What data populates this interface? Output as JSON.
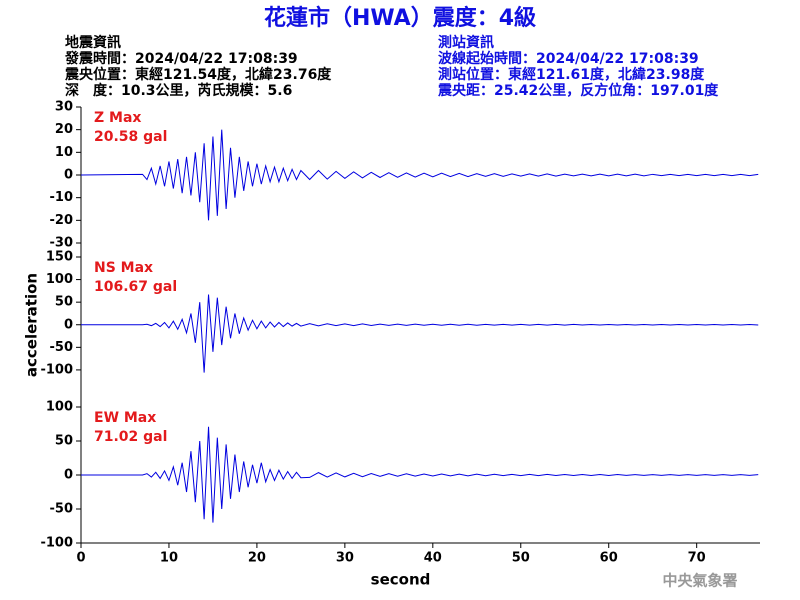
{
  "header": {
    "title": "花蓮市（HWA）震度：4級",
    "left_lines": [
      "地震資訊",
      "發震時間：2024/04/22 17:08:39",
      "震央位置：東經121.54度，北緯23.76度",
      "深　度：10.3公里，芮氏規模：5.6"
    ],
    "right_lines": [
      "測站資訊",
      "波線起始時間：2024/04/22 17:08:39",
      "測站位置：東經121.61度，北緯23.98度",
      "震央距：25.42公里，反方位角：197.01度"
    ],
    "footer": "中央氣象署"
  },
  "chart_data": [
    {
      "type": "line",
      "annotation": [
        "Z Max",
        "20.58 gal"
      ],
      "color": "#0000e0",
      "ylim": [
        -30,
        30
      ],
      "yticks": [
        -30,
        -20,
        -10,
        0,
        10,
        20,
        30
      ],
      "xlim": [
        0,
        77.2
      ],
      "x": [
        0,
        7,
        7.5,
        8,
        8.5,
        9,
        9.5,
        10,
        10.5,
        11,
        11.5,
        12,
        12.5,
        13,
        13.5,
        14,
        14.5,
        15,
        15.5,
        16,
        16.5,
        17,
        17.5,
        18,
        18.5,
        19,
        19.5,
        20,
        20.5,
        21,
        21.5,
        22,
        22.5,
        23,
        23.5,
        24,
        24.5,
        25,
        26,
        27,
        28,
        29,
        30,
        31,
        32,
        33,
        34,
        35,
        36,
        37,
        38,
        39,
        40,
        41,
        42,
        43,
        44,
        45,
        46,
        47,
        48,
        49,
        50,
        51,
        52,
        53,
        54,
        55,
        56,
        57,
        58,
        59,
        60,
        61,
        62,
        63,
        64,
        65,
        66,
        67,
        68,
        69,
        70,
        71,
        72,
        73,
        74,
        75,
        76,
        77
      ],
      "values": [
        0,
        0.3,
        -2,
        3,
        -4,
        4,
        -5,
        6,
        -6,
        7,
        -8,
        8,
        -9,
        10,
        -12,
        14,
        -20,
        17,
        -18,
        20,
        -15,
        12,
        -10,
        8,
        -7,
        6,
        -5,
        5,
        -4,
        4,
        -3,
        3.5,
        -3,
        3,
        -2.5,
        2.5,
        -2,
        2,
        -2,
        2,
        -1.8,
        1.6,
        -1.5,
        1.4,
        -1.3,
        1.2,
        -1.1,
        1,
        -1,
        0.9,
        -0.9,
        0.8,
        -0.8,
        0.8,
        -0.7,
        0.7,
        -0.7,
        0.6,
        -0.6,
        0.6,
        -0.6,
        0.5,
        -0.5,
        0.5,
        -0.5,
        0.5,
        -0.5,
        0.4,
        -0.4,
        0.4,
        -0.4,
        0.4,
        -0.4,
        0.4,
        -0.4,
        0.4,
        -0.4,
        0.3,
        -0.3,
        0.3,
        -0.3,
        0.3,
        -0.3,
        0.3,
        -0.3,
        0.3,
        -0.3,
        0.3,
        -0.3,
        0.3
      ]
    },
    {
      "type": "line",
      "annotation": [
        "NS Max",
        "106.67 gal"
      ],
      "ylabel": "acceleration",
      "color": "#0000e0",
      "ylim": [
        -150,
        150
      ],
      "yticks": [
        -100,
        -50,
        0,
        50,
        100,
        150
      ],
      "xlim": [
        0,
        77.2
      ],
      "x": [
        0,
        7,
        7.5,
        8,
        8.5,
        9,
        9.5,
        10,
        10.5,
        11,
        11.5,
        12,
        12.5,
        13,
        13.5,
        14,
        14.5,
        15,
        15.5,
        16,
        16.5,
        17,
        17.5,
        18,
        18.5,
        19,
        19.5,
        20,
        20.5,
        21,
        21.5,
        22,
        22.5,
        23,
        23.5,
        24,
        24.5,
        25,
        26,
        27,
        28,
        29,
        30,
        31,
        32,
        33,
        34,
        35,
        36,
        37,
        38,
        39,
        40,
        41,
        42,
        43,
        44,
        45,
        46,
        47,
        48,
        49,
        50,
        51,
        52,
        53,
        54,
        55,
        56,
        57,
        58,
        59,
        60,
        61,
        62,
        63,
        64,
        65,
        66,
        67,
        68,
        69,
        70,
        71,
        72,
        73,
        74,
        75,
        76,
        77
      ],
      "values": [
        0,
        0,
        1,
        -2,
        3,
        -4,
        5,
        -7,
        8,
        -10,
        12,
        -18,
        25,
        -40,
        50,
        -106,
        67,
        -60,
        60,
        -45,
        40,
        -30,
        25,
        -20,
        15,
        -12,
        10,
        -9,
        8,
        -7,
        6,
        -5,
        5,
        -4,
        4,
        -3,
        3,
        -3,
        2.5,
        -2.5,
        2.2,
        -2,
        2,
        -1.8,
        1.8,
        -1.6,
        1.5,
        -1.5,
        1.4,
        -1.3,
        1.3,
        -1.2,
        1.2,
        -1.1,
        1.1,
        -1,
        1,
        -1,
        0.9,
        -0.9,
        0.9,
        -0.8,
        0.8,
        -0.8,
        0.8,
        -0.7,
        0.7,
        -0.7,
        0.7,
        -0.6,
        0.6,
        -0.6,
        0.6,
        -0.6,
        0.5,
        -0.5,
        0.5,
        -0.5,
        0.5,
        -0.5,
        0.5,
        -0.5,
        0.5,
        -0.5,
        0.5,
        -0.5,
        0.5,
        -0.5,
        0.5,
        -0.5
      ]
    },
    {
      "type": "line",
      "annotation": [
        "EW Max",
        "71.02 gal"
      ],
      "xlabel": "second",
      "color": "#0000e0",
      "ylim": [
        -100,
        100
      ],
      "yticks": [
        -100,
        -50,
        0,
        50,
        100
      ],
      "xlim": [
        0,
        77.2
      ],
      "xticks": [
        0,
        10,
        20,
        30,
        40,
        50,
        60,
        70
      ],
      "x": [
        0,
        7,
        7.5,
        8,
        8.5,
        9,
        9.5,
        10,
        10.5,
        11,
        11.5,
        12,
        12.5,
        13,
        13.5,
        14,
        14.5,
        15,
        15.5,
        16,
        16.5,
        17,
        17.5,
        18,
        18.5,
        19,
        19.5,
        20,
        20.5,
        21,
        21.5,
        22,
        22.5,
        23,
        23.5,
        24,
        24.5,
        25,
        26,
        27,
        28,
        29,
        30,
        31,
        32,
        33,
        34,
        35,
        36,
        37,
        38,
        39,
        40,
        41,
        42,
        43,
        44,
        45,
        46,
        47,
        48,
        49,
        50,
        51,
        52,
        53,
        54,
        55,
        56,
        57,
        58,
        59,
        60,
        61,
        62,
        63,
        64,
        65,
        66,
        67,
        68,
        69,
        70,
        71,
        72,
        73,
        74,
        75,
        76,
        77
      ],
      "values": [
        0,
        0,
        2,
        -3,
        4,
        -5,
        6,
        -8,
        12,
        -15,
        18,
        -25,
        35,
        -40,
        50,
        -65,
        71,
        -70,
        55,
        -50,
        45,
        -35,
        30,
        -25,
        20,
        -18,
        15,
        -12,
        18,
        -10,
        8,
        -8,
        7,
        -6,
        5,
        -5,
        4,
        -4,
        -3.5,
        3.5,
        -3,
        3,
        -2.8,
        2.5,
        -2.5,
        2.2,
        -2,
        2,
        -1.8,
        1.8,
        -1.6,
        1.5,
        -1.5,
        1.4,
        -1.3,
        1.3,
        -1.2,
        1.2,
        -1.1,
        1.1,
        -1,
        1,
        -1,
        0.9,
        -0.9,
        0.9,
        -0.8,
        0.8,
        -0.8,
        0.8,
        -0.7,
        0.7,
        -0.7,
        0.7,
        -0.6,
        0.6,
        -0.6,
        0.6,
        -0.6,
        0.5,
        -0.5,
        0.5,
        -0.5,
        0.5,
        -0.5,
        0.5,
        -0.5,
        0.5,
        -0.5,
        0.5
      ]
    }
  ]
}
